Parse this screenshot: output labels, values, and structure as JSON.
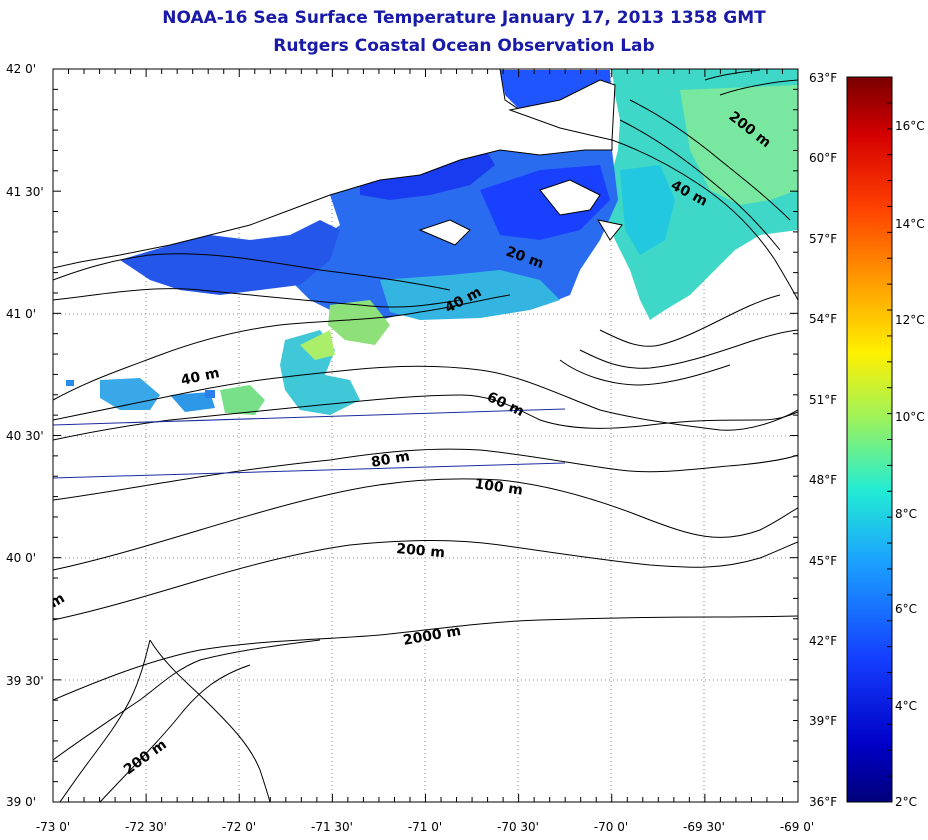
{
  "title": "NOAA-16 Sea Surface Temperature January 17, 2013 1358 GMT",
  "subtitle": "Rutgers Coastal Ocean Observation Lab",
  "map": {
    "lon_ticks": [
      "-73 0'",
      "-72 30'",
      "-72 0'",
      "-71 30'",
      "-71 0'",
      "-70 30'",
      "-70 0'",
      "-69 30'",
      "-69 0'"
    ],
    "lat_ticks": [
      "42 0'",
      "41 30'",
      "41 0'",
      "40 30'",
      "40 0'",
      "39 30'",
      "39 0'"
    ],
    "fahrenheit_ticks": [
      "63°F",
      "60°F",
      "57°F",
      "54°F",
      "51°F",
      "48°F",
      "45°F",
      "42°F",
      "39°F",
      "36°F"
    ],
    "contour_labels": [
      "200 m",
      "40 m",
      "20 m",
      "40 m",
      "40 m",
      "60 m",
      "80 m",
      "100 m",
      "200 m",
      "2000 m",
      "200 m",
      "m"
    ]
  },
  "colorbar": {
    "celsius_ticks": [
      "16°C",
      "14°C",
      "12°C",
      "10°C",
      "8°C",
      "6°C",
      "4°C",
      "2°C"
    ],
    "colors": [
      "#7a0000",
      "#d40000",
      "#ff4000",
      "#ff9a00",
      "#fff000",
      "#9ef25a",
      "#22ecd4",
      "#1ba0ff",
      "#1540ff",
      "#0000c8",
      "#00007a"
    ]
  }
}
